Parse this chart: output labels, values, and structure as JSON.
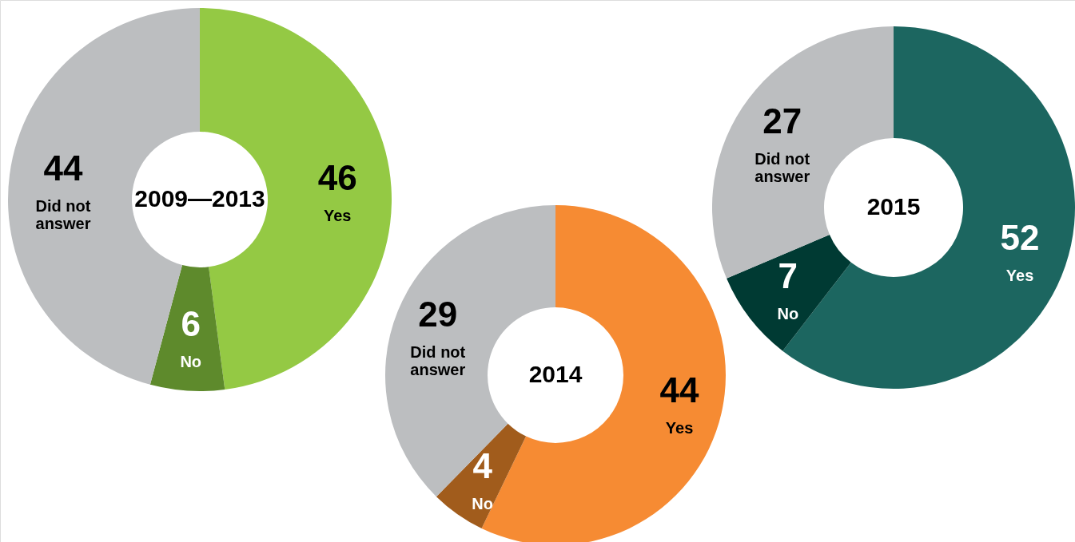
{
  "chart_data": [
    {
      "type": "donut",
      "title": "2009—2013",
      "categories": [
        "Yes",
        "No",
        "Did not\nanswer"
      ],
      "values": [
        46,
        6,
        44
      ],
      "colors": [
        "#94c944",
        "#5e8a2c",
        "#bcbec0"
      ],
      "data_labels": true
    },
    {
      "type": "donut",
      "title": "2014",
      "categories": [
        "Yes",
        "No",
        "Did not\nanswer"
      ],
      "values": [
        44,
        4,
        29
      ],
      "colors": [
        "#f68b33",
        "#a15c1c",
        "#bcbec0"
      ],
      "data_labels": true
    },
    {
      "type": "donut",
      "title": "2015",
      "categories": [
        "Yes",
        "No",
        "Did not\nanswer"
      ],
      "values": [
        52,
        7,
        27
      ],
      "colors": [
        "#1c6660",
        "#003a33",
        "#bcbec0"
      ],
      "data_labels": true
    }
  ]
}
